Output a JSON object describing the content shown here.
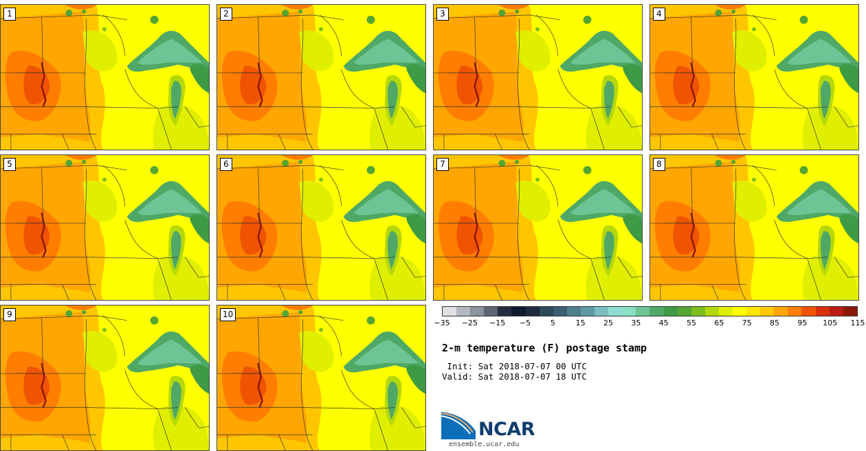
{
  "panels": [
    {
      "label": "1"
    },
    {
      "label": "2"
    },
    {
      "label": "3"
    },
    {
      "label": "4"
    },
    {
      "label": "5"
    },
    {
      "label": "6"
    },
    {
      "label": "7"
    },
    {
      "label": "8"
    },
    {
      "label": "9"
    },
    {
      "label": "10"
    }
  ],
  "colorbar": {
    "colors": [
      "#dfe0e3",
      "#b4b8bf",
      "#8d93a0",
      "#5e6676",
      "#262d3e",
      "#0f1a2e",
      "#1f2a3c",
      "#2e4a5b",
      "#3b5f72",
      "#4e7f8a",
      "#5f9ba5",
      "#7bbfc3",
      "#8fdcd3",
      "#88e0c4",
      "#6ec495",
      "#4fa866",
      "#3f9a45",
      "#55a532",
      "#7ebf1e",
      "#b5d80a",
      "#e0ef00",
      "#ffff00",
      "#ffe600",
      "#ffc800",
      "#ffa600",
      "#ff7e00",
      "#f05400",
      "#d8300a",
      "#b81c10",
      "#8c1808"
    ],
    "tick_labels": [
      "−35",
      "−25",
      "−15",
      "−5",
      "5",
      "15",
      "25",
      "35",
      "45",
      "55",
      "65",
      "75",
      "85",
      "95",
      "105",
      "115"
    ]
  },
  "title": "2-m temperature (F) postage stamp",
  "init": " Init: Sat 2018-07-07 00 UTC",
  "valid": "Valid: Sat 2018-07-07 18 UTC",
  "logo": {
    "name": "NCAR",
    "url": "ensemble.ucar.edu"
  }
}
